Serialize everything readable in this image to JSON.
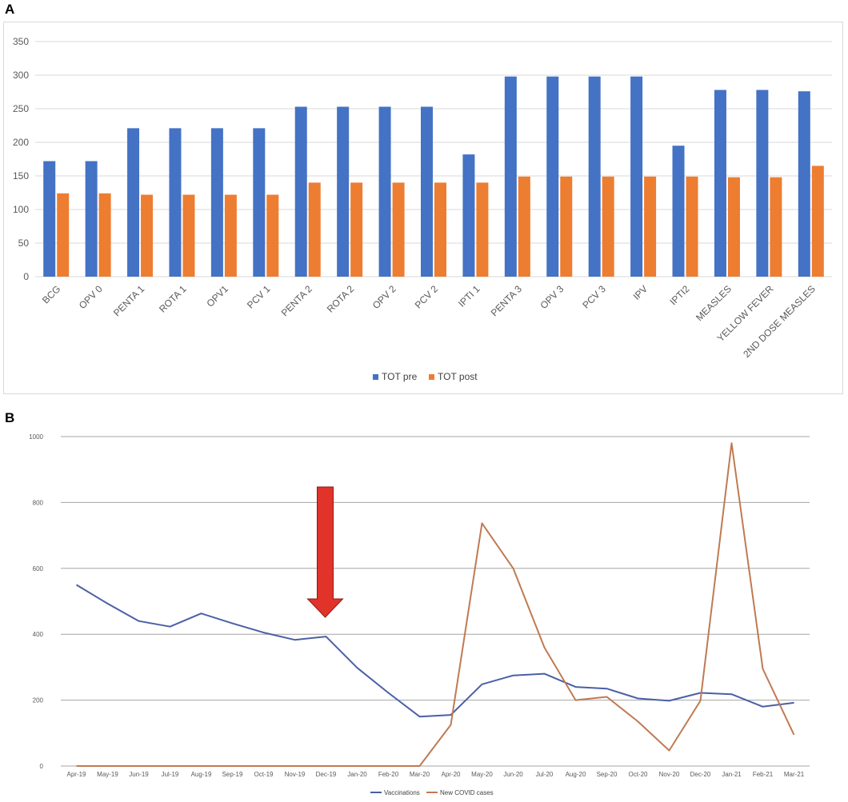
{
  "panels": {
    "a_label": "A",
    "b_label": "B"
  },
  "chart_data": [
    {
      "type": "bar",
      "title": "",
      "categories": [
        "BCG",
        "OPV 0",
        "PENTA 1",
        "ROTA 1",
        "OPV1",
        "PCV 1",
        "PENTA 2",
        "ROTA 2",
        "OPV 2",
        "PCV 2",
        "IPTI 1",
        "PENTA 3",
        "OPV 3",
        "PCV 3",
        "IPV",
        "IPTI2",
        "MEASLES",
        "YELLOW FEVER",
        "2ND DOSE MEASLES"
      ],
      "series": [
        {
          "name": "TOT pre",
          "color": "#4472C4",
          "values": [
            172,
            172,
            221,
            221,
            221,
            221,
            253,
            253,
            253,
            253,
            182,
            298,
            298,
            298,
            298,
            195,
            278,
            278,
            276
          ]
        },
        {
          "name": "TOT post",
          "color": "#ED7D31",
          "values": [
            124,
            124,
            122,
            122,
            122,
            122,
            140,
            140,
            140,
            140,
            140,
            149,
            149,
            149,
            149,
            149,
            148,
            148,
            165
          ]
        }
      ],
      "ylim": [
        0,
        350
      ],
      "yticks": [
        0,
        50,
        100,
        150,
        200,
        250,
        300,
        350
      ],
      "grid": true,
      "legend": "bottom-center"
    },
    {
      "type": "line",
      "title": "",
      "x": [
        "Apr-19",
        "May-19",
        "Jun-19",
        "Jul-19",
        "Aug-19",
        "Sep-19",
        "Oct-19",
        "Nov-19",
        "Dec-19",
        "Jan-20",
        "Feb-20",
        "Mar-20",
        "Apr-20",
        "May-20",
        "Jun-20",
        "Jul-20",
        "Aug-20",
        "Sep-20",
        "Oct-20",
        "Nov-20",
        "Dec-20",
        "Jan-21",
        "Feb-21",
        "Mar-21"
      ],
      "series": [
        {
          "name": "Vaccinations",
          "color": "#4A5FA6",
          "values": [
            550,
            493,
            440,
            423,
            463,
            433,
            405,
            383,
            393,
            298,
            222,
            150,
            155,
            248,
            275,
            280,
            240,
            235,
            205,
            198,
            222,
            218,
            180,
            192
          ]
        },
        {
          "name": "New COVID cases",
          "color": "#C07A52",
          "values": [
            0,
            0,
            0,
            0,
            0,
            0,
            0,
            0,
            0,
            0,
            0,
            0,
            125,
            737,
            600,
            360,
            200,
            210,
            135,
            47,
            198,
            980,
            295,
            95
          ]
        }
      ],
      "ylim": [
        0,
        1000
      ],
      "yticks": [
        0,
        200,
        400,
        600,
        800,
        1000
      ],
      "grid": true,
      "legend": "bottom-center",
      "annotation": {
        "type": "arrow",
        "color": "#E2332A",
        "at": "Dec-19",
        "direction": "down"
      }
    }
  ]
}
